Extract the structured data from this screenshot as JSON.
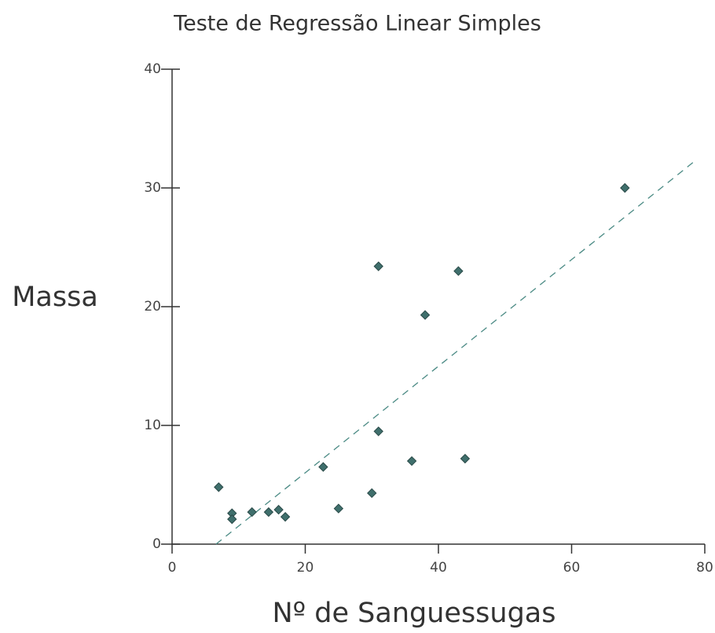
{
  "chart_data": {
    "type": "scatter",
    "title": "Teste de Regressão Linear Simples",
    "xlabel": "Nº de Sanguessugas",
    "ylabel": "Massa",
    "series": [
      {
        "color": "#3f6f6c",
        "x": [
          7,
          9,
          9,
          12,
          14.5,
          16,
          17,
          22.7,
          25,
          30,
          31,
          31,
          36,
          38,
          43,
          44,
          68
        ],
        "values": [
          4.8,
          2.6,
          2.1,
          2.7,
          2.7,
          2.9,
          2.3,
          6.5,
          3.0,
          4.3,
          23.4,
          9.5,
          7.0,
          19.3,
          23.0,
          7.2,
          30.0
        ]
      }
    ],
    "trendline": {
      "color": "#4a8a84",
      "x": [
        6.6,
        78.8
      ],
      "y": [
        0,
        32.4
      ]
    },
    "xlim": [
      0,
      80
    ],
    "xticks": [
      0,
      20,
      40,
      60,
      80
    ],
    "ylim": [
      0,
      40
    ],
    "yticks": [
      0,
      10,
      20,
      30,
      40
    ]
  }
}
